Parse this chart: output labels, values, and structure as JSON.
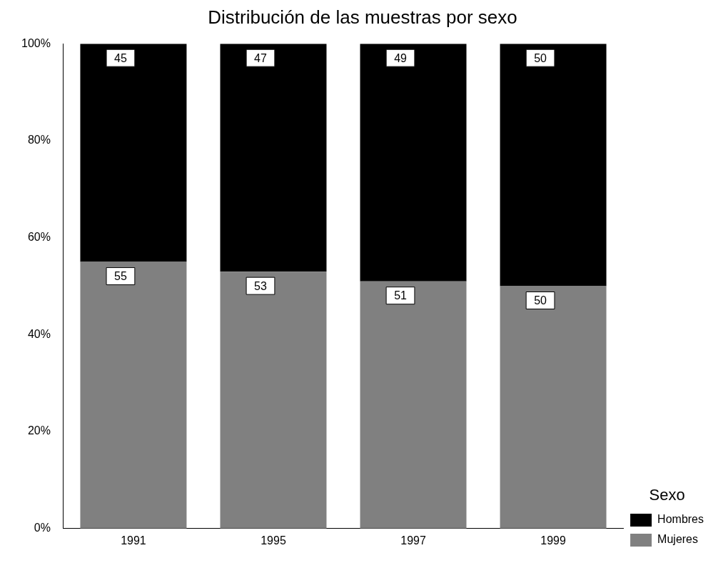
{
  "chart_data": {
    "type": "bar",
    "title": "Distribución de las muestras por sexo",
    "categories": [
      "1991",
      "1995",
      "1997",
      "1999"
    ],
    "stacked": true,
    "legend": "bottom right",
    "legend_title": "Sexo",
    "grid": false,
    "data_labels": true,
    "ylim": [
      0,
      100
    ],
    "yticks": [
      {
        "value": 0,
        "label": "0%"
      },
      {
        "value": 20,
        "label": "20%"
      },
      {
        "value": 40,
        "label": "40%"
      },
      {
        "value": 60,
        "label": "60%"
      },
      {
        "value": 80,
        "label": "80%"
      },
      {
        "value": 100,
        "label": "100%"
      }
    ],
    "series": [
      {
        "name": "Mujeres",
        "color": "#808080",
        "values": [
          55,
          53,
          51,
          50
        ]
      },
      {
        "name": "Hombres",
        "color": "#000000",
        "values": [
          45,
          47,
          49,
          50
        ]
      }
    ]
  }
}
